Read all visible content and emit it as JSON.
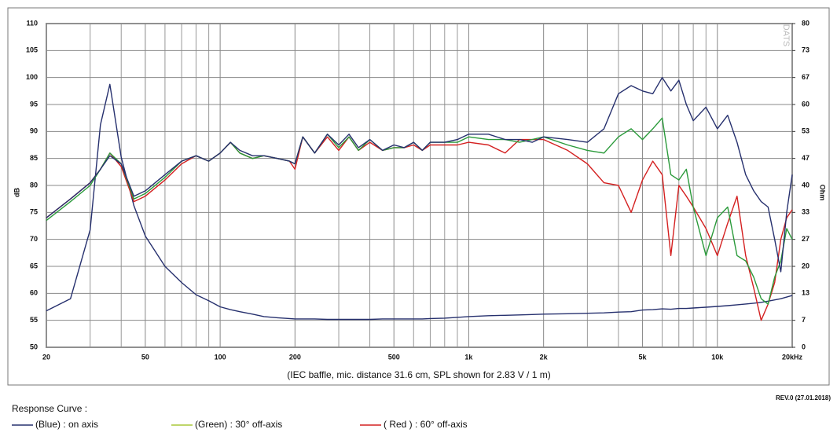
{
  "chart_data": {
    "type": "line",
    "x_scale": "log",
    "xlim": [
      20,
      20000
    ],
    "xticks": [
      20,
      50,
      100,
      200,
      500,
      {
        "value": 1000,
        "label": "1k"
      },
      {
        "value": 2000,
        "label": "2k"
      },
      {
        "value": 5000,
        "label": "5k"
      },
      {
        "value": 10000,
        "label": "10k"
      },
      {
        "value": 20000,
        "label": "20kHz"
      }
    ],
    "xminor": [
      30,
      40,
      60,
      70,
      80,
      90,
      300,
      400,
      600,
      700,
      800,
      900,
      3000,
      4000,
      6000,
      7000,
      8000,
      9000
    ],
    "ylim": [
      50,
      110
    ],
    "yticks": [
      50,
      55,
      60,
      65,
      70,
      75,
      80,
      85,
      90,
      95,
      100,
      105,
      110
    ],
    "y2lim": [
      0,
      80
    ],
    "y2ticks": [
      0,
      {
        "value": 6.667,
        "label": "7"
      },
      {
        "value": 13.333,
        "label": "13"
      },
      20,
      {
        "value": 26.667,
        "label": "27"
      },
      {
        "value": 33.333,
        "label": "33"
      },
      40,
      {
        "value": 46.667,
        "label": "47"
      },
      {
        "value": 53.333,
        "label": "53"
      },
      60,
      {
        "value": 66.667,
        "label": "67"
      },
      {
        "value": 73.333,
        "label": "73"
      },
      80
    ],
    "ylabel": "dB",
    "y2label": "Ohm",
    "grid": true,
    "caption": "(IEC baffle, mic. distance 31.6 cm, SPL shown for 2.83 V / 1 m)",
    "revision": "REV.0 (27.01.2018)",
    "watermark": "DATS",
    "legend_title": "Response Curve :",
    "x": [
      20,
      25,
      30,
      33,
      36,
      40,
      45,
      50,
      60,
      70,
      80,
      90,
      100,
      110,
      120,
      135,
      150,
      170,
      190,
      200,
      215,
      240,
      270,
      300,
      330,
      360,
      400,
      450,
      500,
      550,
      600,
      650,
      700,
      800,
      900,
      1000,
      1200,
      1400,
      1600,
      1800,
      2000,
      2500,
      3000,
      3500,
      4000,
      4500,
      5000,
      5500,
      6000,
      6500,
      7000,
      7500,
      8000,
      9000,
      10000,
      11000,
      12000,
      13000,
      14000,
      15000,
      16000,
      17000,
      18000,
      19000,
      20000
    ],
    "series": [
      {
        "name": "(Blue)  : on axis",
        "color": "#26306e",
        "legend_color": "#26306e",
        "values": [
          74,
          77.5,
          80.5,
          83,
          85.5,
          84,
          78,
          79,
          82,
          84.5,
          85.5,
          84.5,
          86,
          88,
          86.5,
          85.5,
          85.5,
          85,
          84.5,
          84,
          89,
          86,
          89.5,
          87.5,
          89.5,
          87,
          88.5,
          86.5,
          87.5,
          87,
          88,
          86.5,
          88,
          88,
          88.5,
          89.5,
          89.5,
          88.5,
          88.5,
          88,
          89,
          88.5,
          88,
          90.5,
          97,
          98.5,
          97.5,
          97,
          100,
          97.5,
          99.5,
          95,
          92,
          94.5,
          90.5,
          93,
          88,
          82,
          79,
          77,
          76,
          70,
          64,
          75,
          82
        ]
      },
      {
        "name": "(Green) : 30° off-axis",
        "color": "#2a9a3a",
        "legend_color": "#a8c838",
        "values": [
          73.5,
          77,
          80,
          83,
          86,
          84,
          77.5,
          78.5,
          81.5,
          84.5,
          85.5,
          84.5,
          86,
          88,
          86,
          85,
          85.5,
          85,
          84.5,
          84,
          89,
          86,
          89.5,
          87,
          89,
          86.5,
          88.5,
          86.5,
          87,
          87,
          88,
          86.5,
          88,
          88,
          88,
          89,
          88.5,
          88.5,
          88,
          88.5,
          89,
          87.5,
          86.5,
          86,
          89,
          90.5,
          88.5,
          90.5,
          92.5,
          82,
          81,
          83,
          76,
          67,
          74,
          76,
          67,
          66,
          63,
          59,
          58,
          63,
          66,
          72,
          70
        ]
      },
      {
        "name": "( Red ) : 60° off-axis",
        "color": "#d42020",
        "legend_color": "#d42020",
        "values": [
          74,
          77.5,
          80.5,
          83,
          86,
          83.5,
          77,
          78,
          81,
          84,
          85.5,
          84.5,
          86,
          88,
          86,
          85,
          85.5,
          85,
          84.5,
          83,
          89,
          86,
          89,
          86.5,
          89,
          86.5,
          88,
          86.5,
          87,
          87,
          87.5,
          86.5,
          87.5,
          87.5,
          87.5,
          88,
          87.5,
          86,
          88.5,
          88.5,
          88.5,
          86.5,
          84,
          80.5,
          80,
          75,
          81,
          84.5,
          82,
          67,
          80,
          78,
          76,
          72,
          67,
          73,
          78,
          67,
          61,
          55,
          58,
          62,
          70,
          74,
          75.5
        ]
      },
      {
        "color": "#26306e",
        "axis": "y2",
        "values": [
          9,
          12,
          29,
          55,
          65,
          47,
          35,
          27.5,
          20,
          16,
          13,
          11.5,
          10,
          9.3,
          8.8,
          8.2,
          7.6,
          7.3,
          7.1,
          7,
          7,
          7,
          6.9,
          6.9,
          6.9,
          6.9,
          6.9,
          7,
          7,
          7,
          7,
          7,
          7.1,
          7.2,
          7.4,
          7.6,
          7.8,
          7.9,
          8,
          8.1,
          8.2,
          8.3,
          8.4,
          8.5,
          8.7,
          8.8,
          9.2,
          9.3,
          9.5,
          9.4,
          9.6,
          9.6,
          9.7,
          9.9,
          10.1,
          10.3,
          10.5,
          10.7,
          10.9,
          11.1,
          11.4,
          11.7,
          12,
          12.4,
          12.8
        ]
      }
    ]
  }
}
